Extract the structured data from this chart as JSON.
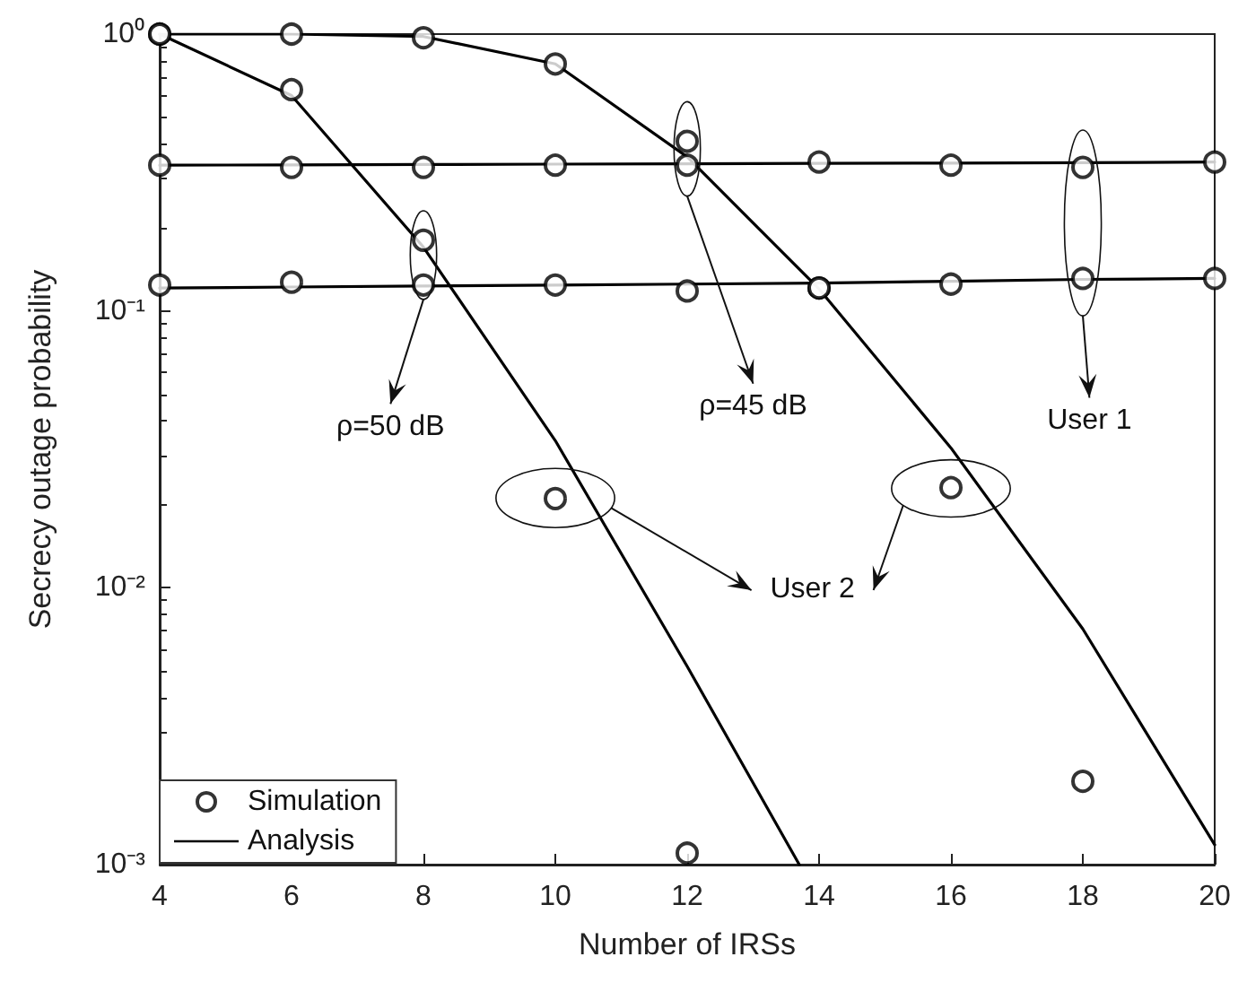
{
  "chart_data": {
    "type": "line",
    "xlabel": "Number of IRSs",
    "ylabel": "Secrecy outage probability",
    "xlim": [
      4,
      20
    ],
    "xticks": [
      4,
      6,
      8,
      10,
      12,
      14,
      16,
      18,
      20
    ],
    "ylim": [
      0.001,
      1
    ],
    "yticks": [
      {
        "value": 0.001,
        "label": "10⁻³"
      },
      {
        "value": 0.01,
        "label": "10⁻²"
      },
      {
        "value": 0.1,
        "label": "10⁻¹"
      },
      {
        "value": 1,
        "label": "10⁰"
      }
    ],
    "log": "y",
    "grid": false,
    "legend": "bottom left",
    "series": [
      {
        "name": "Simulation",
        "type": "scatter",
        "marker": "circle",
        "color": "#000000",
        "x": [
          4,
          6,
          8,
          10,
          12,
          14,
          16,
          18,
          20
        ],
        "values": [
          0.336,
          0.33,
          0.33,
          0.336,
          0.336,
          0.345,
          0.336,
          0.33,
          0.345
        ]
      },
      {
        "type": "scatter",
        "marker": "circle",
        "color": "#000000",
        "x": [
          4,
          6,
          8,
          10,
          12,
          14,
          16,
          18,
          20
        ],
        "values": [
          0.124,
          0.127,
          0.124,
          0.124,
          0.118,
          0.121,
          0.125,
          0.131,
          0.131
        ]
      },
      {
        "type": "scatter",
        "marker": "circle",
        "color": "#000000",
        "x": [
          4,
          6,
          8,
          10,
          12,
          14,
          16,
          18
        ],
        "values": [
          1.0,
          1.0,
          0.97,
          0.78,
          0.41,
          0.121,
          0.023,
          0.002
        ]
      },
      {
        "type": "scatter",
        "marker": "circle",
        "color": "#000000",
        "x": [
          4,
          6,
          8,
          10,
          12
        ],
        "values": [
          1.0,
          0.63,
          0.18,
          0.021,
          0.0011
        ]
      },
      {
        "name": "Analysis",
        "marker": "none",
        "line_style": "solid",
        "color": "#000000",
        "x": [
          4,
          6,
          8,
          10,
          12,
          14,
          16,
          18,
          20
        ],
        "values": [
          0.336,
          0.337,
          0.338,
          0.339,
          0.34,
          0.341,
          0.342,
          0.343,
          0.345
        ]
      },
      {
        "marker": "none",
        "line_style": "solid",
        "color": "#000000",
        "x": [
          4,
          6,
          8,
          10,
          12,
          14,
          16,
          18,
          20
        ],
        "values": [
          0.121,
          0.122,
          0.123,
          0.124,
          0.125,
          0.126,
          0.128,
          0.13,
          0.131
        ]
      },
      {
        "marker": "none",
        "line_style": "solid",
        "color": "#000000",
        "x": [
          4,
          6,
          8,
          10,
          12,
          14,
          16,
          18,
          20
        ],
        "values": [
          1.0,
          1.0,
          0.98,
          0.78,
          0.36,
          0.12,
          0.032,
          0.0071,
          0.00118
        ]
      },
      {
        "marker": "none",
        "line_style": "solid",
        "color": "#000000",
        "x": [
          4,
          6,
          8,
          10,
          12,
          13.7
        ],
        "values": [
          1.0,
          0.6,
          0.17,
          0.034,
          0.0052,
          0.001
        ]
      }
    ],
    "annotations": [
      {
        "text": "ρ=50 dB",
        "x": 8,
        "y": 0.11
      },
      "ρ=45 dB",
      "User 1",
      "User 2"
    ]
  }
}
